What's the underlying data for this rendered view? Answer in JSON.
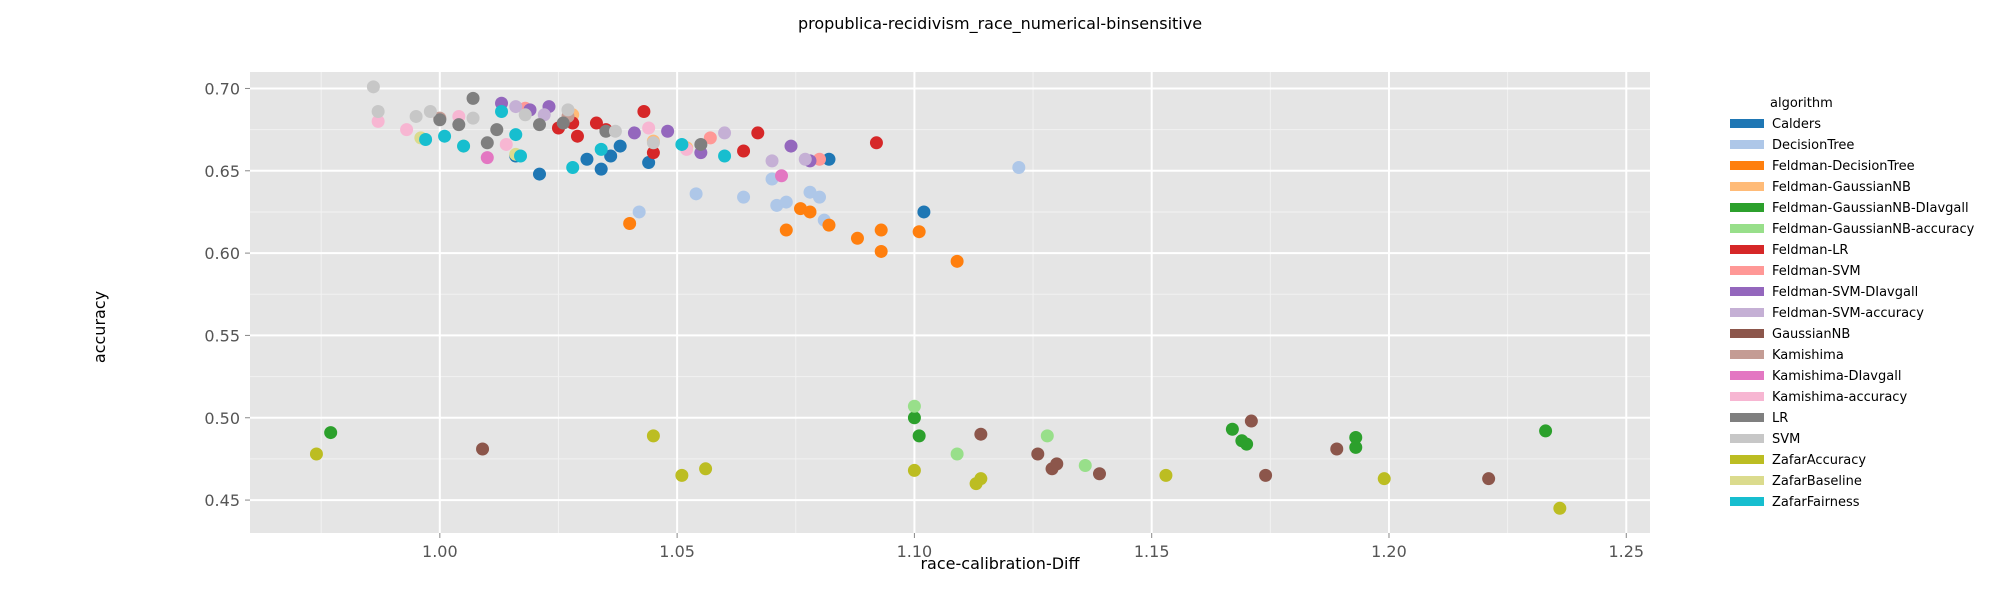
{
  "chart_data": {
    "type": "scatter",
    "title": "propublica-recidivism_race_numerical-binsensitive",
    "xlabel": "race-calibration-Diff",
    "ylabel": "accuracy",
    "xlim": [
      0.96,
      1.255
    ],
    "ylim": [
      0.43,
      0.71
    ],
    "xticks": [
      1.0,
      1.05,
      1.1,
      1.15,
      1.2,
      1.25
    ],
    "xtick_labels": [
      "1.00",
      "1.05",
      "1.10",
      "1.15",
      "1.20",
      "1.25"
    ],
    "yticks": [
      0.45,
      0.5,
      0.55,
      0.6,
      0.65,
      0.7
    ],
    "ytick_labels": [
      "0.45",
      "0.50",
      "0.55",
      "0.60",
      "0.65",
      "0.70"
    ],
    "grid": true,
    "legend_title": "algorithm",
    "legend_position": "right",
    "series": [
      {
        "name": "Calders",
        "color": "#1f77b4",
        "points": [
          [
            1.021,
            0.648
          ],
          [
            1.031,
            0.657
          ],
          [
            1.034,
            0.651
          ],
          [
            1.036,
            0.659
          ],
          [
            1.038,
            0.665
          ],
          [
            1.044,
            0.655
          ],
          [
            1.082,
            0.657
          ],
          [
            1.102,
            0.625
          ],
          [
            1.016,
            0.659
          ]
        ]
      },
      {
        "name": "DecisionTree",
        "color": "#aec7e8",
        "points": [
          [
            1.042,
            0.625
          ],
          [
            1.054,
            0.636
          ],
          [
            1.064,
            0.634
          ],
          [
            1.071,
            0.629
          ],
          [
            1.073,
            0.631
          ],
          [
            1.078,
            0.637
          ],
          [
            1.08,
            0.634
          ],
          [
            1.081,
            0.62
          ],
          [
            1.122,
            0.652
          ],
          [
            1.07,
            0.645
          ]
        ]
      },
      {
        "name": "Feldman-DecisionTree",
        "color": "#ff7f0e",
        "points": [
          [
            1.04,
            0.618
          ],
          [
            1.073,
            0.614
          ],
          [
            1.076,
            0.627
          ],
          [
            1.078,
            0.625
          ],
          [
            1.082,
            0.617
          ],
          [
            1.088,
            0.609
          ],
          [
            1.093,
            0.614
          ],
          [
            1.093,
            0.601
          ],
          [
            1.101,
            0.613
          ],
          [
            1.109,
            0.595
          ]
        ]
      },
      {
        "name": "Feldman-GaussianNB",
        "color": "#ffbb78",
        "points": [
          [
            1.028,
            0.684
          ],
          [
            1.045,
            0.668
          ],
          [
            1.052,
            0.664
          ]
        ]
      },
      {
        "name": "Feldman-GaussianNB-DIavgall",
        "color": "#2ca02c",
        "points": [
          [
            0.977,
            0.491
          ],
          [
            1.1,
            0.5
          ],
          [
            1.101,
            0.489
          ],
          [
            1.167,
            0.493
          ],
          [
            1.169,
            0.486
          ],
          [
            1.17,
            0.484
          ],
          [
            1.193,
            0.488
          ],
          [
            1.193,
            0.482
          ],
          [
            1.233,
            0.492
          ]
        ]
      },
      {
        "name": "Feldman-GaussianNB-accuracy",
        "color": "#98df8a",
        "points": [
          [
            1.1,
            0.507
          ],
          [
            1.109,
            0.478
          ],
          [
            1.128,
            0.489
          ],
          [
            1.136,
            0.471
          ]
        ]
      },
      {
        "name": "Feldman-LR",
        "color": "#d62728",
        "points": [
          [
            1.025,
            0.676
          ],
          [
            1.028,
            0.679
          ],
          [
            1.029,
            0.671
          ],
          [
            1.033,
            0.679
          ],
          [
            1.035,
            0.675
          ],
          [
            1.043,
            0.686
          ],
          [
            1.045,
            0.661
          ],
          [
            1.064,
            0.662
          ],
          [
            1.067,
            0.673
          ],
          [
            1.092,
            0.667
          ]
        ]
      },
      {
        "name": "Feldman-SVM",
        "color": "#ff9896",
        "points": [
          [
            1.018,
            0.688
          ],
          [
            1.057,
            0.67
          ],
          [
            1.08,
            0.657
          ]
        ]
      },
      {
        "name": "Feldman-SVM-DIavgall",
        "color": "#9467bd",
        "points": [
          [
            1.013,
            0.691
          ],
          [
            1.019,
            0.687
          ],
          [
            1.023,
            0.689
          ],
          [
            1.041,
            0.673
          ],
          [
            1.048,
            0.674
          ],
          [
            1.055,
            0.661
          ],
          [
            1.074,
            0.665
          ],
          [
            1.078,
            0.656
          ]
        ]
      },
      {
        "name": "Feldman-SVM-accuracy",
        "color": "#c5b0d5",
        "points": [
          [
            1.016,
            0.689
          ],
          [
            1.022,
            0.684
          ],
          [
            1.06,
            0.673
          ],
          [
            1.07,
            0.656
          ],
          [
            1.077,
            0.657
          ]
        ]
      },
      {
        "name": "GaussianNB",
        "color": "#8c564b",
        "points": [
          [
            1.009,
            0.481
          ],
          [
            1.114,
            0.49
          ],
          [
            1.126,
            0.478
          ],
          [
            1.129,
            0.469
          ],
          [
            1.13,
            0.472
          ],
          [
            1.139,
            0.466
          ],
          [
            1.171,
            0.498
          ],
          [
            1.174,
            0.465
          ],
          [
            1.189,
            0.481
          ],
          [
            1.221,
            0.463
          ]
        ]
      },
      {
        "name": "Kamishima",
        "color": "#c49c94",
        "points": [
          [
            1.0,
            0.682
          ],
          [
            1.027,
            0.683
          ]
        ]
      },
      {
        "name": "Kamishima-DIavgall",
        "color": "#e377c2",
        "points": [
          [
            1.01,
            0.658
          ],
          [
            1.072,
            0.647
          ]
        ]
      },
      {
        "name": "Kamishima-accuracy",
        "color": "#f7b6d2",
        "points": [
          [
            0.987,
            0.68
          ],
          [
            0.993,
            0.675
          ],
          [
            1.004,
            0.683
          ],
          [
            1.014,
            0.666
          ],
          [
            1.044,
            0.676
          ],
          [
            1.052,
            0.663
          ]
        ]
      },
      {
        "name": "LR",
        "color": "#7f7f7f",
        "points": [
          [
            1.0,
            0.681
          ],
          [
            1.004,
            0.678
          ],
          [
            1.007,
            0.694
          ],
          [
            1.01,
            0.667
          ],
          [
            1.012,
            0.675
          ],
          [
            1.021,
            0.678
          ],
          [
            1.026,
            0.679
          ],
          [
            1.035,
            0.674
          ],
          [
            1.055,
            0.666
          ]
        ]
      },
      {
        "name": "SVM",
        "color": "#c7c7c7",
        "points": [
          [
            0.986,
            0.701
          ],
          [
            0.987,
            0.686
          ],
          [
            0.995,
            0.683
          ],
          [
            0.998,
            0.686
          ],
          [
            1.007,
            0.682
          ],
          [
            1.018,
            0.684
          ],
          [
            1.027,
            0.687
          ],
          [
            1.037,
            0.674
          ],
          [
            1.045,
            0.667
          ]
        ]
      },
      {
        "name": "ZafarAccuracy",
        "color": "#bcbd22",
        "points": [
          [
            0.974,
            0.478
          ],
          [
            1.045,
            0.489
          ],
          [
            1.051,
            0.465
          ],
          [
            1.056,
            0.469
          ],
          [
            1.1,
            0.468
          ],
          [
            1.113,
            0.46
          ],
          [
            1.114,
            0.463
          ],
          [
            1.153,
            0.465
          ],
          [
            1.199,
            0.463
          ],
          [
            1.236,
            0.445
          ]
        ]
      },
      {
        "name": "ZafarBaseline",
        "color": "#dbdb8d",
        "points": [
          [
            0.996,
            0.67
          ],
          [
            1.005,
            0.665
          ],
          [
            1.016,
            0.66
          ]
        ]
      },
      {
        "name": "ZafarFairness",
        "color": "#17becf",
        "points": [
          [
            0.997,
            0.669
          ],
          [
            1.001,
            0.671
          ],
          [
            1.005,
            0.665
          ],
          [
            1.013,
            0.686
          ],
          [
            1.016,
            0.672
          ],
          [
            1.017,
            0.659
          ],
          [
            1.028,
            0.652
          ],
          [
            1.034,
            0.663
          ],
          [
            1.051,
            0.666
          ],
          [
            1.06,
            0.659
          ]
        ]
      }
    ]
  }
}
